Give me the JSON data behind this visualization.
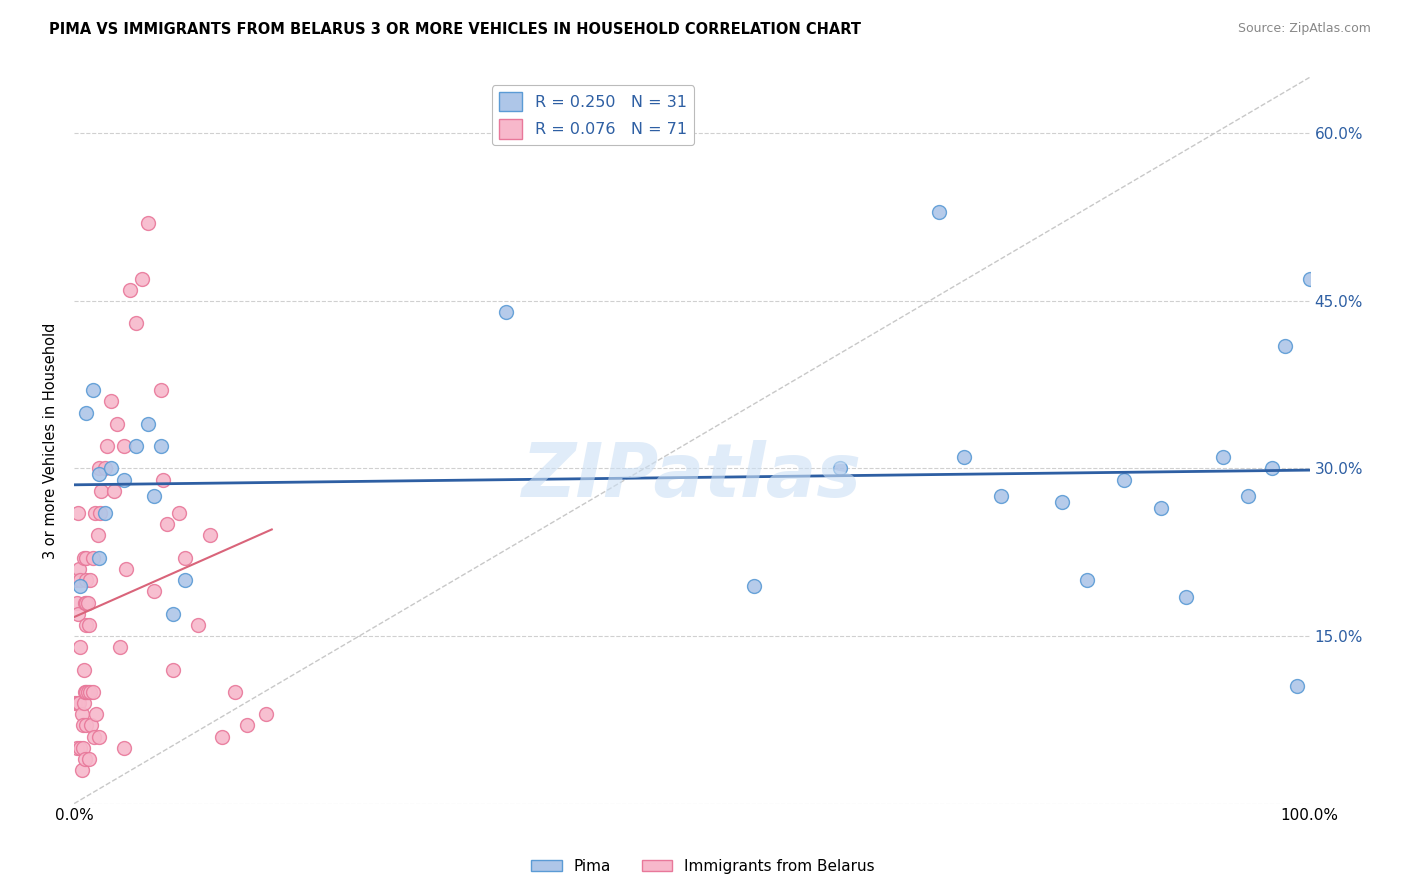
{
  "title": "PIMA VS IMMIGRANTS FROM BELARUS 3 OR MORE VEHICLES IN HOUSEHOLD CORRELATION CHART",
  "source": "Source: ZipAtlas.com",
  "ylabel": "3 or more Vehicles in Household",
  "xlim": [
    0.0,
    1.0
  ],
  "ylim": [
    0.0,
    0.65
  ],
  "xticks": [
    0.0,
    0.1,
    0.2,
    0.3,
    0.4,
    0.5,
    0.6,
    0.7,
    0.8,
    0.9,
    1.0
  ],
  "xticklabels": [
    "0.0%",
    "",
    "",
    "",
    "",
    "",
    "",
    "",
    "",
    "",
    "100.0%"
  ],
  "yticks": [
    0.0,
    0.15,
    0.3,
    0.45,
    0.6
  ],
  "yticklabels": [
    "",
    "15.0%",
    "30.0%",
    "45.0%",
    "60.0%"
  ],
  "legend_label1": "R = 0.250   N = 31",
  "legend_label2": "R = 0.076   N = 71",
  "pima_color": "#aec6e8",
  "belarus_color": "#f7b8cb",
  "pima_edge_color": "#5b9bd5",
  "belarus_edge_color": "#e8789a",
  "trendline_pima_color": "#2e5fa3",
  "trendline_belarus_color": "#d9647a",
  "trendline_diagonal_color": "#c8c8c8",
  "watermark": "ZIPatlas",
  "pima_x": [
    0.005,
    0.01,
    0.015,
    0.02,
    0.02,
    0.025,
    0.03,
    0.04,
    0.05,
    0.06,
    0.065,
    0.07,
    0.08,
    0.09,
    0.35,
    0.55,
    0.62,
    0.7,
    0.72,
    0.75,
    0.8,
    0.82,
    0.85,
    0.88,
    0.9,
    0.93,
    0.95,
    0.97,
    0.98,
    0.99,
    1.0
  ],
  "pima_y": [
    0.195,
    0.35,
    0.37,
    0.295,
    0.22,
    0.26,
    0.3,
    0.29,
    0.32,
    0.34,
    0.275,
    0.32,
    0.17,
    0.2,
    0.44,
    0.195,
    0.3,
    0.53,
    0.31,
    0.275,
    0.27,
    0.2,
    0.29,
    0.265,
    0.185,
    0.31,
    0.275,
    0.3,
    0.41,
    0.105,
    0.47
  ],
  "belarus_x": [
    0.001,
    0.001,
    0.002,
    0.002,
    0.003,
    0.003,
    0.003,
    0.004,
    0.004,
    0.005,
    0.005,
    0.005,
    0.006,
    0.006,
    0.007,
    0.007,
    0.008,
    0.008,
    0.008,
    0.009,
    0.009,
    0.009,
    0.01,
    0.01,
    0.01,
    0.01,
    0.01,
    0.01,
    0.011,
    0.011,
    0.012,
    0.012,
    0.013,
    0.013,
    0.014,
    0.015,
    0.015,
    0.016,
    0.017,
    0.018,
    0.019,
    0.02,
    0.02,
    0.021,
    0.022,
    0.025,
    0.027,
    0.03,
    0.032,
    0.035,
    0.037,
    0.04,
    0.04,
    0.042,
    0.045,
    0.05,
    0.055,
    0.06,
    0.065,
    0.07,
    0.072,
    0.075,
    0.08,
    0.085,
    0.09,
    0.1,
    0.11,
    0.12,
    0.13,
    0.14,
    0.155
  ],
  "belarus_y": [
    0.2,
    0.09,
    0.18,
    0.05,
    0.17,
    0.26,
    0.09,
    0.09,
    0.21,
    0.14,
    0.2,
    0.05,
    0.08,
    0.03,
    0.05,
    0.07,
    0.09,
    0.12,
    0.22,
    0.1,
    0.18,
    0.04,
    0.16,
    0.1,
    0.2,
    0.07,
    0.18,
    0.22,
    0.1,
    0.18,
    0.04,
    0.16,
    0.1,
    0.2,
    0.07,
    0.1,
    0.22,
    0.06,
    0.26,
    0.08,
    0.24,
    0.3,
    0.06,
    0.26,
    0.28,
    0.3,
    0.32,
    0.36,
    0.28,
    0.34,
    0.14,
    0.32,
    0.05,
    0.21,
    0.46,
    0.43,
    0.47,
    0.52,
    0.19,
    0.37,
    0.29,
    0.25,
    0.12,
    0.26,
    0.22,
    0.16,
    0.24,
    0.06,
    0.1,
    0.07,
    0.08
  ],
  "marker_size": 100
}
